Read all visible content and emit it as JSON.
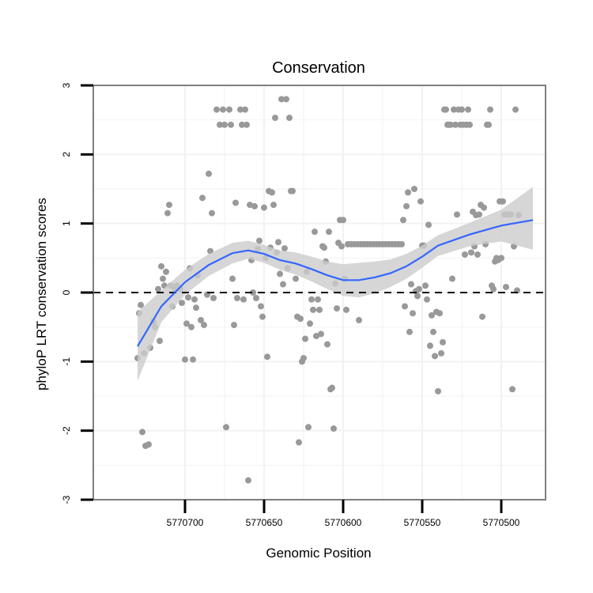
{
  "chart_data": {
    "type": "scatter",
    "title": "Conservation",
    "xlabel": "Genomic Position",
    "ylabel": "phyloP LRT conservation scores",
    "x_axis_reversed": true,
    "xlim": [
      5770472,
      5770758
    ],
    "ylim": [
      -3,
      3
    ],
    "xticks": [
      5770700,
      5770650,
      5770600,
      5770550,
      5770500
    ],
    "yticks": [
      3,
      2,
      1,
      0,
      -1,
      -2,
      -3
    ],
    "grid": true,
    "reference_line": {
      "y": 0,
      "style": "dashed"
    },
    "colors": {
      "points": "#999999",
      "smooth_line": "#3366ff",
      "ribbon": "#cccccc",
      "frame": "#7f7f7f",
      "grid": "#f2f2f2"
    },
    "smooth": {
      "x": [
        5770730,
        5770715,
        5770700,
        5770685,
        5770670,
        5770660,
        5770650,
        5770640,
        5770630,
        5770620,
        5770610,
        5770600,
        5770590,
        5770580,
        5770570,
        5770560,
        5770550,
        5770540,
        5770520,
        5770500,
        5770480
      ],
      "y": [
        -0.78,
        -0.2,
        0.15,
        0.4,
        0.57,
        0.61,
        0.56,
        0.47,
        0.42,
        0.34,
        0.25,
        0.18,
        0.18,
        0.22,
        0.28,
        0.38,
        0.52,
        0.68,
        0.84,
        0.97,
        1.05
      ],
      "lower": [
        -1.28,
        -0.43,
        -0.03,
        0.24,
        0.42,
        0.49,
        0.43,
        0.33,
        0.26,
        0.16,
        0.05,
        -0.05,
        -0.07,
        -0.01,
        0.08,
        0.2,
        0.36,
        0.53,
        0.67,
        0.74,
        0.62
      ],
      "upper": [
        -0.28,
        0.03,
        0.33,
        0.56,
        0.72,
        0.75,
        0.69,
        0.61,
        0.58,
        0.52,
        0.45,
        0.41,
        0.43,
        0.45,
        0.48,
        0.56,
        0.68,
        0.83,
        1.01,
        1.2,
        1.53
      ]
    },
    "points": [
      {
        "x": 5770730,
        "y": -0.95
      },
      {
        "x": 5770729,
        "y": -0.3
      },
      {
        "x": 5770728,
        "y": -0.18
      },
      {
        "x": 5770727,
        "y": -2.02
      },
      {
        "x": 5770726,
        "y": -0.88
      },
      {
        "x": 5770725,
        "y": -2.22
      },
      {
        "x": 5770723,
        "y": -2.2
      },
      {
        "x": 5770722,
        "y": -0.8
      },
      {
        "x": 5770720,
        "y": -0.42
      },
      {
        "x": 5770719,
        "y": -0.5
      },
      {
        "x": 5770717,
        "y": 0.05
      },
      {
        "x": 5770716,
        "y": -0.7
      },
      {
        "x": 5770715,
        "y": 0.38
      },
      {
        "x": 5770714,
        "y": 0.2
      },
      {
        "x": 5770713,
        "y": 0.1
      },
      {
        "x": 5770712,
        "y": 0.3
      },
      {
        "x": 5770711,
        "y": 1.15
      },
      {
        "x": 5770710,
        "y": 1.27
      },
      {
        "x": 5770709,
        "y": 0.1
      },
      {
        "x": 5770708,
        "y": -0.2
      },
      {
        "x": 5770707,
        "y": 0.08
      },
      {
        "x": 5770706,
        "y": 0.05
      },
      {
        "x": 5770705,
        "y": 0.1
      },
      {
        "x": 5770703,
        "y": 0.05
      },
      {
        "x": 5770702,
        "y": -0.15
      },
      {
        "x": 5770700,
        "y": -0.97
      },
      {
        "x": 5770699,
        "y": -0.45
      },
      {
        "x": 5770698,
        "y": -0.07
      },
      {
        "x": 5770697,
        "y": 0.35
      },
      {
        "x": 5770696,
        "y": -0.5
      },
      {
        "x": 5770695,
        "y": -0.97
      },
      {
        "x": 5770694,
        "y": -0.1
      },
      {
        "x": 5770693,
        "y": -0.22
      },
      {
        "x": 5770692,
        "y": 0.25
      },
      {
        "x": 5770690,
        "y": -0.4
      },
      {
        "x": 5770689,
        "y": 1.37
      },
      {
        "x": 5770688,
        "y": -0.47
      },
      {
        "x": 5770686,
        "y": -0.03
      },
      {
        "x": 5770685,
        "y": 1.72
      },
      {
        "x": 5770684,
        "y": 0.6
      },
      {
        "x": 5770683,
        "y": 1.15
      },
      {
        "x": 5770682,
        "y": -0.08
      },
      {
        "x": 5770680,
        "y": 2.65
      },
      {
        "x": 5770678,
        "y": 2.43
      },
      {
        "x": 5770676,
        "y": 2.65
      },
      {
        "x": 5770675,
        "y": 2.43
      },
      {
        "x": 5770674,
        "y": -1.95
      },
      {
        "x": 5770672,
        "y": 2.65
      },
      {
        "x": 5770671,
        "y": 2.43
      },
      {
        "x": 5770670,
        "y": 0.2
      },
      {
        "x": 5770669,
        "y": -0.47
      },
      {
        "x": 5770668,
        "y": 1.3
      },
      {
        "x": 5770667,
        "y": -0.08
      },
      {
        "x": 5770665,
        "y": 2.65
      },
      {
        "x": 5770664,
        "y": 2.43
      },
      {
        "x": 5770663,
        "y": -0.1
      },
      {
        "x": 5770662,
        "y": 2.65
      },
      {
        "x": 5770661,
        "y": 2.43
      },
      {
        "x": 5770660,
        "y": -2.72
      },
      {
        "x": 5770659,
        "y": 1.27
      },
      {
        "x": 5770658,
        "y": 0.47
      },
      {
        "x": 5770657,
        "y": 0.0
      },
      {
        "x": 5770656,
        "y": 1.25
      },
      {
        "x": 5770655,
        "y": -0.08
      },
      {
        "x": 5770654,
        "y": 0.63
      },
      {
        "x": 5770653,
        "y": 0.75
      },
      {
        "x": 5770652,
        "y": -0.2
      },
      {
        "x": 5770651,
        "y": -0.35
      },
      {
        "x": 5770650,
        "y": 1.23
      },
      {
        "x": 5770649,
        "y": 0.5
      },
      {
        "x": 5770648,
        "y": -0.93
      },
      {
        "x": 5770647,
        "y": 1.47
      },
      {
        "x": 5770646,
        "y": 0.65
      },
      {
        "x": 5770645,
        "y": 1.45
      },
      {
        "x": 5770644,
        "y": 1.27
      },
      {
        "x": 5770643,
        "y": 2.53
      },
      {
        "x": 5770642,
        "y": 0.58
      },
      {
        "x": 5770641,
        "y": 0.73
      },
      {
        "x": 5770640,
        "y": 0.27
      },
      {
        "x": 5770639,
        "y": 2.8
      },
      {
        "x": 5770638,
        "y": 0.12
      },
      {
        "x": 5770637,
        "y": 0.64
      },
      {
        "x": 5770636,
        "y": 2.8
      },
      {
        "x": 5770635,
        "y": 0.35
      },
      {
        "x": 5770634,
        "y": 2.53
      },
      {
        "x": 5770633,
        "y": 1.47
      },
      {
        "x": 5770632,
        "y": 1.47
      },
      {
        "x": 5770630,
        "y": 0.2
      },
      {
        "x": 5770629,
        "y": -0.35
      },
      {
        "x": 5770628,
        "y": -2.17
      },
      {
        "x": 5770627,
        "y": -0.38
      },
      {
        "x": 5770626,
        "y": -1.0
      },
      {
        "x": 5770625,
        "y": -0.95
      },
      {
        "x": 5770624,
        "y": -0.67
      },
      {
        "x": 5770623,
        "y": 0.3
      },
      {
        "x": 5770622,
        "y": -1.95
      },
      {
        "x": 5770621,
        "y": -0.45
      },
      {
        "x": 5770620,
        "y": -0.1
      },
      {
        "x": 5770619,
        "y": -0.25
      },
      {
        "x": 5770618,
        "y": 0.88
      },
      {
        "x": 5770617,
        "y": -0.63
      },
      {
        "x": 5770616,
        "y": -0.1
      },
      {
        "x": 5770615,
        "y": -0.25
      },
      {
        "x": 5770614,
        "y": -0.6
      },
      {
        "x": 5770613,
        "y": 0.67
      },
      {
        "x": 5770612,
        "y": 0.65
      },
      {
        "x": 5770611,
        "y": 0.45
      },
      {
        "x": 5770610,
        "y": -0.75
      },
      {
        "x": 5770609,
        "y": 0.88
      },
      {
        "x": 5770608,
        "y": -1.4
      },
      {
        "x": 5770607,
        "y": -1.38
      },
      {
        "x": 5770606,
        "y": -1.97
      },
      {
        "x": 5770605,
        "y": 0.13
      },
      {
        "x": 5770604,
        "y": -0.23
      },
      {
        "x": 5770603,
        "y": 0.72
      },
      {
        "x": 5770602,
        "y": 1.05
      },
      {
        "x": 5770601,
        "y": 0.67
      },
      {
        "x": 5770600,
        "y": 1.05
      },
      {
        "x": 5770599,
        "y": 0.2
      },
      {
        "x": 5770598,
        "y": -0.25
      },
      {
        "x": 5770597,
        "y": 0.7
      },
      {
        "x": 5770595,
        "y": 0.7
      },
      {
        "x": 5770593,
        "y": 0.7
      },
      {
        "x": 5770591,
        "y": 0.7
      },
      {
        "x": 5770590,
        "y": -0.4
      },
      {
        "x": 5770589,
        "y": 0.7
      },
      {
        "x": 5770587,
        "y": 0.7
      },
      {
        "x": 5770585,
        "y": 0.7
      },
      {
        "x": 5770583,
        "y": 0.7
      },
      {
        "x": 5770581,
        "y": 0.7
      },
      {
        "x": 5770579,
        "y": 0.7
      },
      {
        "x": 5770577,
        "y": 0.7
      },
      {
        "x": 5770575,
        "y": 0.7
      },
      {
        "x": 5770573,
        "y": 0.7
      },
      {
        "x": 5770571,
        "y": 0.7
      },
      {
        "x": 5770569,
        "y": 0.7
      },
      {
        "x": 5770567,
        "y": 0.7
      },
      {
        "x": 5770565,
        "y": 0.7
      },
      {
        "x": 5770563,
        "y": 0.7
      },
      {
        "x": 5770562,
        "y": 1.05
      },
      {
        "x": 5770561,
        "y": -0.2
      },
      {
        "x": 5770560,
        "y": 1.25
      },
      {
        "x": 5770559,
        "y": 1.45
      },
      {
        "x": 5770558,
        "y": -0.57
      },
      {
        "x": 5770557,
        "y": 0.12
      },
      {
        "x": 5770556,
        "y": -0.3
      },
      {
        "x": 5770555,
        "y": 1.5
      },
      {
        "x": 5770554,
        "y": 0.02
      },
      {
        "x": 5770553,
        "y": -0.05
      },
      {
        "x": 5770552,
        "y": 0.05
      },
      {
        "x": 5770551,
        "y": 1.32
      },
      {
        "x": 5770550,
        "y": 0.68
      },
      {
        "x": 5770549,
        "y": 0.68
      },
      {
        "x": 5770548,
        "y": 0.1
      },
      {
        "x": 5770547,
        "y": -0.1
      },
      {
        "x": 5770546,
        "y": 0.98
      },
      {
        "x": 5770545,
        "y": -0.77
      },
      {
        "x": 5770544,
        "y": -0.33
      },
      {
        "x": 5770543,
        "y": -0.57
      },
      {
        "x": 5770542,
        "y": -0.92
      },
      {
        "x": 5770541,
        "y": -0.28
      },
      {
        "x": 5770540,
        "y": -1.43
      },
      {
        "x": 5770539,
        "y": -0.3
      },
      {
        "x": 5770538,
        "y": -0.88
      },
      {
        "x": 5770537,
        "y": -0.72
      },
      {
        "x": 5770536,
        "y": 2.65
      },
      {
        "x": 5770535,
        "y": 2.65
      },
      {
        "x": 5770534,
        "y": 2.43
      },
      {
        "x": 5770533,
        "y": 2.43
      },
      {
        "x": 5770532,
        "y": 2.43
      },
      {
        "x": 5770531,
        "y": 0.2
      },
      {
        "x": 5770530,
        "y": 2.65
      },
      {
        "x": 5770529,
        "y": 2.43
      },
      {
        "x": 5770528,
        "y": 1.13
      },
      {
        "x": 5770527,
        "y": 2.65
      },
      {
        "x": 5770526,
        "y": 2.43
      },
      {
        "x": 5770525,
        "y": 2.65
      },
      {
        "x": 5770524,
        "y": 2.43
      },
      {
        "x": 5770523,
        "y": 0.55
      },
      {
        "x": 5770522,
        "y": 2.43
      },
      {
        "x": 5770521,
        "y": 2.65
      },
      {
        "x": 5770520,
        "y": 2.43
      },
      {
        "x": 5770519,
        "y": 0.58
      },
      {
        "x": 5770518,
        "y": 1.17
      },
      {
        "x": 5770517,
        "y": 0.67
      },
      {
        "x": 5770516,
        "y": 1.12
      },
      {
        "x": 5770515,
        "y": 0.55
      },
      {
        "x": 5770514,
        "y": 1.13
      },
      {
        "x": 5770513,
        "y": 1.27
      },
      {
        "x": 5770512,
        "y": -0.35
      },
      {
        "x": 5770511,
        "y": 1.23
      },
      {
        "x": 5770510,
        "y": 0.7
      },
      {
        "x": 5770509,
        "y": 2.43
      },
      {
        "x": 5770508,
        "y": 2.43
      },
      {
        "x": 5770507,
        "y": 2.65
      },
      {
        "x": 5770506,
        "y": 0.1
      },
      {
        "x": 5770505,
        "y": 0.05
      },
      {
        "x": 5770504,
        "y": 0.45
      },
      {
        "x": 5770503,
        "y": 0.5
      },
      {
        "x": 5770502,
        "y": 0.47
      },
      {
        "x": 5770501,
        "y": 1.32
      },
      {
        "x": 5770500,
        "y": 0.5
      },
      {
        "x": 5770499,
        "y": 1.32
      },
      {
        "x": 5770498,
        "y": 1.13
      },
      {
        "x": 5770497,
        "y": 0.08
      },
      {
        "x": 5770496,
        "y": 1.13
      },
      {
        "x": 5770495,
        "y": 1.13
      },
      {
        "x": 5770494,
        "y": 1.13
      },
      {
        "x": 5770493,
        "y": -1.4
      },
      {
        "x": 5770492,
        "y": 0.67
      },
      {
        "x": 5770491,
        "y": 2.65
      },
      {
        "x": 5770490,
        "y": 0.03
      },
      {
        "x": 5770489,
        "y": 1.12
      }
    ]
  }
}
